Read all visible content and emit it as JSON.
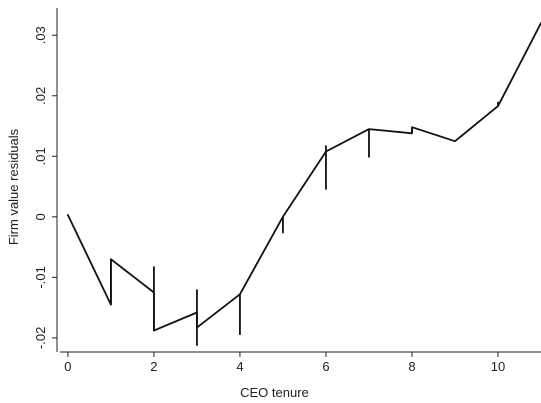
{
  "chart_data": {
    "type": "line",
    "title": "",
    "xlabel": "CEO tenure",
    "ylabel": "Firm value residuals",
    "xlim": [
      -0.3,
      11
    ],
    "ylim": [
      -0.022,
      0.0345
    ],
    "x_ticks": [
      0,
      2,
      4,
      6,
      8,
      10
    ],
    "x_tick_labels": [
      "0",
      "2",
      "4",
      "6",
      "8",
      "10"
    ],
    "y_ticks": [
      -0.02,
      -0.01,
      0,
      0.01,
      0.02,
      0.03
    ],
    "y_tick_labels": [
      "-.02",
      "-.01",
      "0",
      ".01",
      ".02",
      ".03"
    ],
    "grid": false,
    "legend": "none",
    "line_color": "#111111",
    "series": [
      {
        "x": [
          0,
          1,
          1,
          2,
          2,
          3,
          3,
          4,
          4,
          5,
          5,
          6,
          6,
          7,
          7,
          8,
          8,
          9,
          10,
          10,
          11
        ],
        "y": [
          0.0003,
          -0.0145,
          -0.007,
          -0.0125,
          -0.0188,
          -0.0158,
          -0.0183,
          -0.0128,
          -0.0128,
          0.0,
          0.0,
          0.0108,
          0.0108,
          0.0145,
          0.0145,
          0.0138,
          0.0148,
          0.0125,
          0.0183,
          0.0183,
          0.032
        ]
      }
    ],
    "jumps": [
      {
        "x": 1,
        "from": -0.0145,
        "to": -0.007
      },
      {
        "x": 2,
        "from": -0.0082,
        "to": -0.0188
      },
      {
        "x": 3,
        "from": -0.012,
        "to": -0.0213
      },
      {
        "x": 4,
        "from": -0.0128,
        "to": -0.0195
      },
      {
        "x": 5,
        "from": 0.0,
        "to": -0.0027
      },
      {
        "x": 6,
        "from": 0.0118,
        "to": 0.0045
      },
      {
        "x": 7,
        "from": 0.0145,
        "to": 0.0098
      },
      {
        "x": 8,
        "from": 0.0138,
        "to": 0.0148
      },
      {
        "x": 10,
        "from": 0.0183,
        "to": 0.019
      }
    ]
  }
}
